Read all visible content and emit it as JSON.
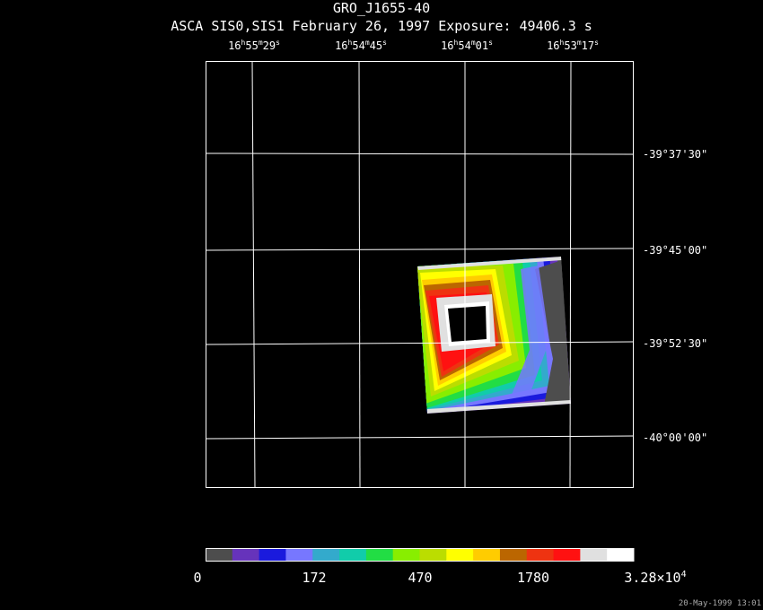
{
  "header": {
    "title": "GRO_J1655-40",
    "subtitle": "ASCA SIS0,SIS1 February 26, 1997 Exposure: 49406.3 s"
  },
  "ra_ticks": [
    {
      "h": "16",
      "m": "55",
      "s": "29"
    },
    {
      "h": "16",
      "m": "54",
      "s": "45"
    },
    {
      "h": "16",
      "m": "54",
      "s": "01"
    },
    {
      "h": "16",
      "m": "53",
      "s": "17"
    }
  ],
  "dec_ticks": [
    "-39°37'30\"",
    "-39°45'00\"",
    "-39°52'30\"",
    "-40°00'00\""
  ],
  "colorbar": {
    "colors": [
      "#4d4d4d",
      "#6633bb",
      "#1a1add",
      "#7777ff",
      "#33aacc",
      "#11ccaa",
      "#22dd44",
      "#88ee00",
      "#bbdd00",
      "#ffff00",
      "#ffcc00",
      "#bb6600",
      "#ee3311",
      "#ff1111",
      "#e0e0e0",
      "#ffffff"
    ],
    "labels": [
      "0",
      "172",
      "470",
      "1780"
    ],
    "max_label_mantissa": "3.28×10",
    "max_label_exp": "4"
  },
  "timestamp": "20-May-1999 13:01"
}
